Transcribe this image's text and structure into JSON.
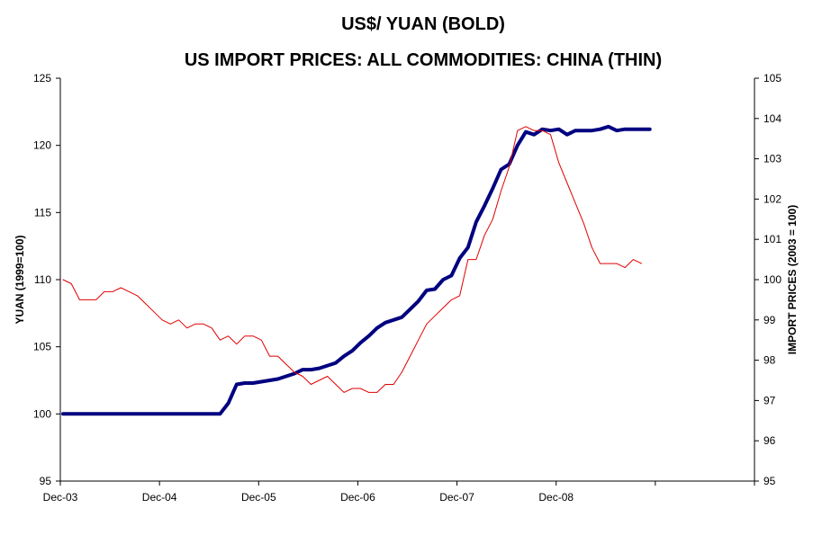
{
  "chart_data": {
    "type": "line",
    "title_line1": "US$/ YUAN (BOLD)",
    "title_line2": "US IMPORT PRICES: ALL COMMODITIES: CHINA (THIN)",
    "ylabel_left": "YUAN (1999=100)",
    "ylabel_right": "IMPORT PRICES (2003 = 100)",
    "x_tick_labels": [
      "Dec-03",
      "Dec-04",
      "Dec-05",
      "Dec-06",
      "Dec-07",
      "Dec-08"
    ],
    "ylim_left": [
      95,
      125
    ],
    "ylim_right": [
      95,
      105
    ],
    "y_ticks_left": [
      95,
      100,
      105,
      110,
      115,
      120,
      125
    ],
    "y_ticks_right": [
      95,
      96,
      97,
      98,
      99,
      100,
      101,
      102,
      103,
      104,
      105
    ],
    "grid": false,
    "legend": "none",
    "series": [
      {
        "axis": "left",
        "color": "#000080",
        "values": [
          100,
          100,
          100,
          100,
          100,
          100,
          100,
          100,
          100,
          100,
          100,
          100,
          100,
          100,
          100,
          100,
          100,
          100,
          100,
          100,
          100.8,
          102.2,
          102.3,
          102.3,
          102.4,
          102.5,
          102.6,
          102.8,
          103.0,
          103.3,
          103.3,
          103.4,
          103.6,
          103.8,
          104.3,
          104.7,
          105.3,
          105.8,
          106.4,
          106.8,
          107.0,
          107.2,
          107.8,
          108.4,
          109.2,
          109.3,
          110.0,
          110.3,
          111.6,
          112.4,
          114.3,
          115.5,
          116.8,
          118.2,
          118.6,
          120.0,
          121.0,
          120.8,
          121.2,
          121.1,
          121.2,
          120.8,
          121.1,
          121.1,
          121.1,
          121.2,
          121.4,
          121.1,
          121.2,
          121.2,
          121.2,
          121.2
        ]
      },
      {
        "axis": "right",
        "color": "#e00000",
        "values": [
          100.0,
          99.9,
          99.5,
          99.5,
          99.5,
          99.7,
          99.7,
          99.8,
          99.7,
          99.6,
          99.4,
          99.2,
          99.0,
          98.9,
          99.0,
          98.8,
          98.9,
          98.9,
          98.8,
          98.5,
          98.6,
          98.4,
          98.6,
          98.6,
          98.5,
          98.1,
          98.1,
          97.9,
          97.7,
          97.6,
          97.4,
          97.5,
          97.6,
          97.4,
          97.2,
          97.3,
          97.3,
          97.2,
          97.2,
          97.4,
          97.4,
          97.7,
          98.1,
          98.5,
          98.9,
          99.1,
          99.3,
          99.5,
          99.6,
          100.5,
          100.5,
          101.1,
          101.5,
          102.2,
          102.8,
          103.7,
          103.8,
          103.7,
          103.7,
          103.6,
          102.9,
          102.4,
          101.9,
          101.4,
          100.8,
          100.4,
          100.4,
          100.4,
          100.3,
          100.5,
          100.4
        ]
      }
    ]
  }
}
